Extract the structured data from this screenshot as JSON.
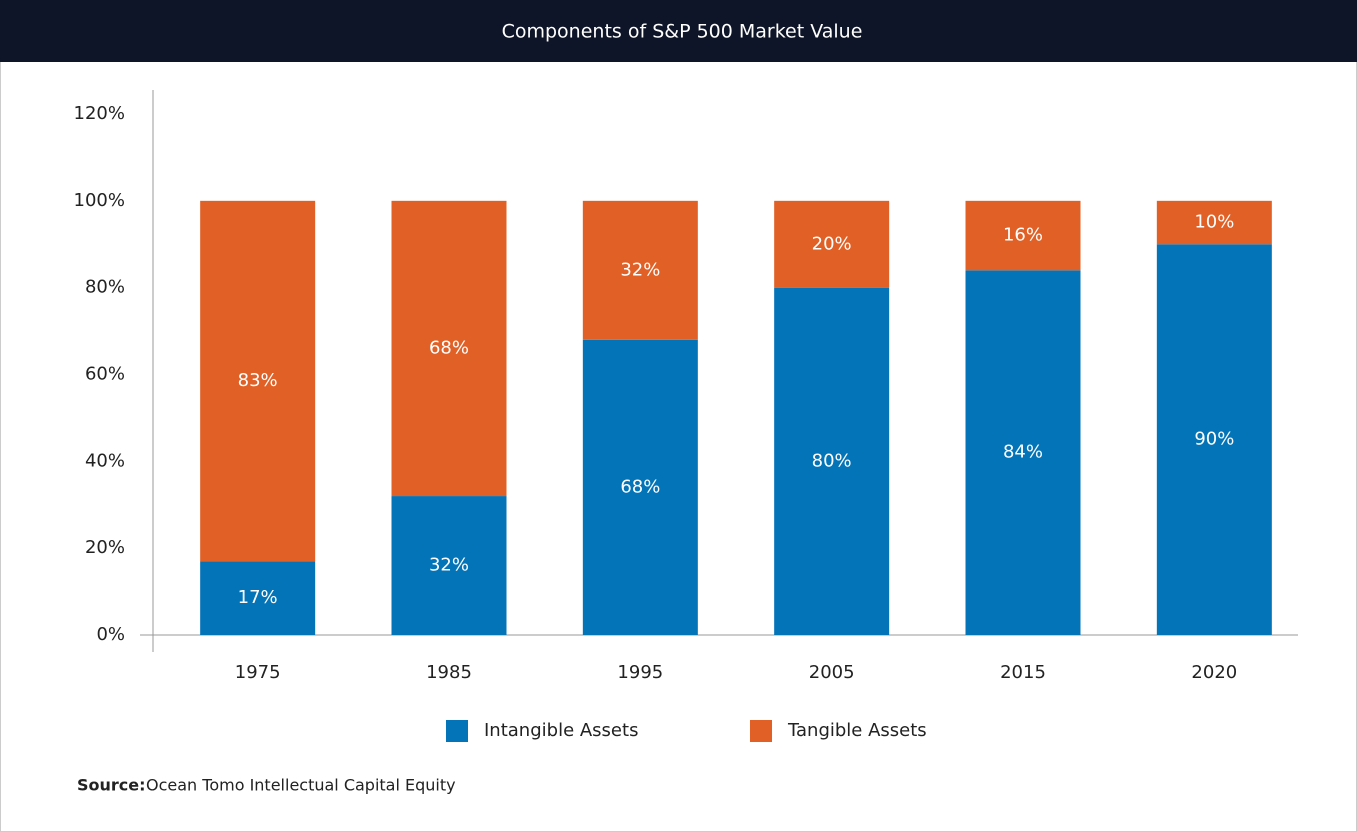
{
  "chart_data": {
    "type": "stacked_bar",
    "title": "Components of S&P 500 Market Value",
    "categories": [
      "1975",
      "1985",
      "1995",
      "2005",
      "2015",
      "2020"
    ],
    "series": [
      {
        "name": "Intangible Assets",
        "color": "#0474b8",
        "values": [
          17,
          32,
          68,
          80,
          84,
          90
        ],
        "value_labels": [
          "17%",
          "32%",
          "68%",
          "80%",
          "84%",
          "90%"
        ]
      },
      {
        "name": "Tangible Assets",
        "color": "#e06026",
        "values": [
          83,
          68,
          32,
          20,
          16,
          10
        ],
        "value_labels": [
          "83%",
          "68%",
          "32%",
          "20%",
          "16%",
          "10%"
        ]
      }
    ],
    "ylim": [
      0,
      120
    ],
    "yticks": [
      {
        "value": 0,
        "label": "0%"
      },
      {
        "value": 20,
        "label": "20%"
      },
      {
        "value": 40,
        "label": "40%"
      },
      {
        "value": 60,
        "label": "60%"
      },
      {
        "value": 80,
        "label": "80%"
      },
      {
        "value": 100,
        "label": "100%"
      },
      {
        "value": 120,
        "label": "120%"
      }
    ],
    "grid": false,
    "source_label": "Source:",
    "source": "Ocean Tomo Intellectual Capital Equity"
  }
}
